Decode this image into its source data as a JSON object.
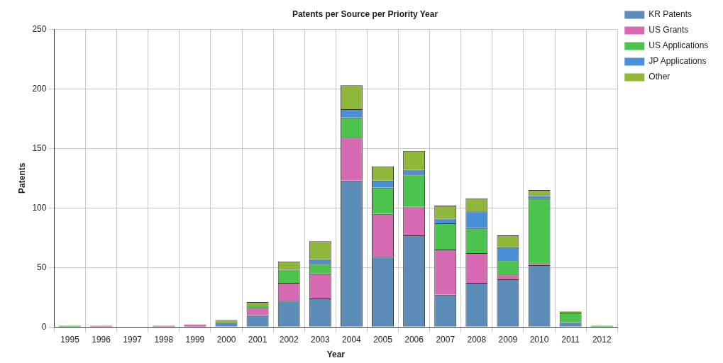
{
  "chart_data": {
    "type": "bar",
    "title": "Patents per Source per Priority Year",
    "xlabel": "Year",
    "ylabel": "Patents",
    "categories": [
      "1995",
      "1996",
      "1997",
      "1998",
      "1999",
      "2000",
      "2001",
      "2002",
      "2003",
      "2004",
      "2005",
      "2006",
      "2007",
      "2008",
      "2009",
      "2010",
      "2011",
      "2012"
    ],
    "series": [
      {
        "name": "KR Patents",
        "color": "#5b8db8",
        "values": [
          0,
          0,
          0,
          0,
          0,
          4,
          10,
          22,
          24,
          123,
          59,
          77,
          27,
          37,
          40,
          52,
          4,
          0
        ]
      },
      {
        "name": "US Grants",
        "color": "#d66bb4",
        "values": [
          0,
          1,
          0,
          1,
          2,
          0,
          6,
          15,
          21,
          36,
          36,
          24,
          38,
          25,
          4,
          1,
          0,
          0
        ]
      },
      {
        "name": "US Applications",
        "color": "#4cc34c",
        "values": [
          1,
          0,
          0,
          0,
          0,
          0,
          2,
          11,
          8,
          17,
          22,
          27,
          22,
          21,
          12,
          55,
          8,
          1
        ]
      },
      {
        "name": "JP Applications",
        "color": "#4a90d9",
        "values": [
          0,
          0,
          0,
          0,
          0,
          0,
          0,
          0,
          4,
          7,
          6,
          4,
          4,
          14,
          11,
          2,
          0,
          0
        ]
      },
      {
        "name": "Other",
        "color": "#8fb83a",
        "values": [
          0,
          0,
          0,
          0,
          0,
          2,
          3,
          7,
          15,
          20,
          12,
          16,
          11,
          11,
          10,
          5,
          1,
          0
        ]
      }
    ],
    "stacked": true,
    "ylim": [
      0,
      250
    ],
    "yticks": [
      0,
      50,
      100,
      150,
      200,
      250
    ],
    "grid": true,
    "legend": "top right"
  }
}
